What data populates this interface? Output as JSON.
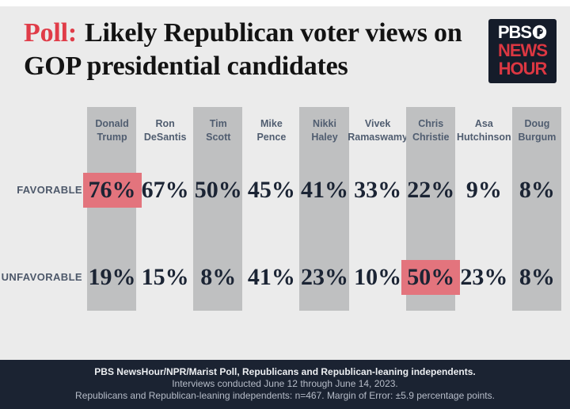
{
  "title": {
    "prefix": "Poll:",
    "text": "Likely Republican voter views on GOP presidential candidates"
  },
  "logo": {
    "line1": "PBS",
    "line2": "NEWS",
    "line3": "HOUR"
  },
  "row_labels": {
    "favorable": "FAVORABLE",
    "unfavorable": "UNFAVORABLE"
  },
  "candidates": [
    {
      "name_line1": "Donald",
      "name_line2": "Trump",
      "favorable": "76%",
      "unfavorable": "19%",
      "shaded": true,
      "favorable_highlight": true,
      "unfavorable_highlight": false
    },
    {
      "name_line1": "Ron",
      "name_line2": "DeSantis",
      "favorable": "67%",
      "unfavorable": "15%",
      "shaded": false,
      "favorable_highlight": false,
      "unfavorable_highlight": false
    },
    {
      "name_line1": "Tim",
      "name_line2": "Scott",
      "favorable": "50%",
      "unfavorable": "8%",
      "shaded": true,
      "favorable_highlight": false,
      "unfavorable_highlight": false
    },
    {
      "name_line1": "Mike",
      "name_line2": "Pence",
      "favorable": "45%",
      "unfavorable": "41%",
      "shaded": false,
      "favorable_highlight": false,
      "unfavorable_highlight": false
    },
    {
      "name_line1": "Nikki",
      "name_line2": "Haley",
      "favorable": "41%",
      "unfavorable": "23%",
      "shaded": true,
      "favorable_highlight": false,
      "unfavorable_highlight": false
    },
    {
      "name_line1": "Vivek",
      "name_line2": "Ramaswamy",
      "favorable": "33%",
      "unfavorable": "10%",
      "shaded": false,
      "favorable_highlight": false,
      "unfavorable_highlight": false
    },
    {
      "name_line1": "Chris",
      "name_line2": "Christie",
      "favorable": "22%",
      "unfavorable": "50%",
      "shaded": true,
      "favorable_highlight": false,
      "unfavorable_highlight": true
    },
    {
      "name_line1": "Asa",
      "name_line2": "Hutchinson",
      "favorable": "9%",
      "unfavorable": "23%",
      "shaded": false,
      "favorable_highlight": false,
      "unfavorable_highlight": false
    },
    {
      "name_line1": "Doug",
      "name_line2": "Burgum",
      "favorable": "8%",
      "unfavorable": "8%",
      "shaded": true,
      "favorable_highlight": false,
      "unfavorable_highlight": false
    }
  ],
  "chart_data": {
    "type": "table",
    "title": "Poll: Likely Republican voter views on GOP presidential candidates",
    "categories": [
      "Donald Trump",
      "Ron DeSantis",
      "Tim Scott",
      "Mike Pence",
      "Nikki Haley",
      "Vivek Ramaswamy",
      "Chris Christie",
      "Asa Hutchinson",
      "Doug Burgum"
    ],
    "series": [
      {
        "name": "Favorable",
        "values": [
          76,
          67,
          50,
          45,
          41,
          33,
          22,
          9,
          8
        ]
      },
      {
        "name": "Unfavorable",
        "values": [
          19,
          15,
          8,
          41,
          23,
          10,
          50,
          23,
          8
        ]
      }
    ],
    "unit": "percent",
    "highlights": [
      {
        "category": "Donald Trump",
        "series": "Favorable",
        "value": 76
      },
      {
        "category": "Chris Christie",
        "series": "Unfavorable",
        "value": 50
      }
    ]
  },
  "footer": {
    "line1": "PBS NewsHour/NPR/Marist Poll, Republicans and Republican-leaning independents.",
    "line2": "Interviews conducted June 12 through June 14, 2023.",
    "line3": "Republicans and Republican-leaning independents: n=467. Margin of Error: ±5.9 percentage points."
  },
  "colors": {
    "background": "#ebebeb",
    "column_shade": "#bfc0c1",
    "highlight": "#e3747d",
    "accent_red": "#e03c48",
    "navy_text": "#1b2434",
    "slate_text": "#505d70",
    "footer_bg": "#1b2332",
    "logo_bg": "#151c2a",
    "logo_red": "#dc3742"
  }
}
